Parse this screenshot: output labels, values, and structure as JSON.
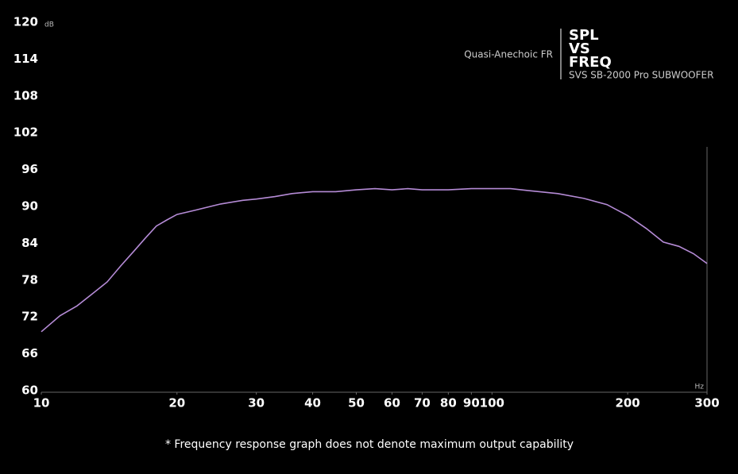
{
  "chart_data": {
    "type": "line",
    "title": [
      "SPL",
      "VS",
      "FREQ"
    ],
    "subtitle": "SVS SB-2000 Pro SUBWOOFER",
    "annotation": "Quasi-Anechoic FR",
    "footnote": "* Frequency response graph does not denote maximum output capability",
    "y_unit": "dB",
    "x_unit": "Hz",
    "x_scale": "log",
    "xlim": [
      10,
      300
    ],
    "ylim": [
      60,
      120
    ],
    "xticks": [
      10,
      20,
      30,
      40,
      50,
      60,
      70,
      80,
      90,
      100,
      200,
      300
    ],
    "yticks": [
      60,
      66,
      72,
      78,
      84,
      90,
      96,
      102,
      108,
      114,
      120
    ],
    "x": [
      10,
      11,
      12,
      13,
      14,
      15,
      16,
      17,
      18,
      19,
      20,
      22,
      25,
      28,
      30,
      33,
      36,
      40,
      45,
      50,
      55,
      60,
      65,
      70,
      80,
      90,
      100,
      110,
      120,
      140,
      160,
      180,
      200,
      220,
      240,
      260,
      280,
      300
    ],
    "series": [
      {
        "color": "#b58bd6",
        "values": [
          69.6,
          72.2,
          73.8,
          75.8,
          77.7,
          80.3,
          82.6,
          84.8,
          86.8,
          87.8,
          88.7,
          89.4,
          90.4,
          91.0,
          91.2,
          91.6,
          92.1,
          92.4,
          92.4,
          92.7,
          92.9,
          92.7,
          92.9,
          92.7,
          92.7,
          92.9,
          92.9,
          92.9,
          92.6,
          92.1,
          91.3,
          90.3,
          88.5,
          86.4,
          84.2,
          83.5,
          82.3,
          80.7
        ]
      }
    ]
  }
}
